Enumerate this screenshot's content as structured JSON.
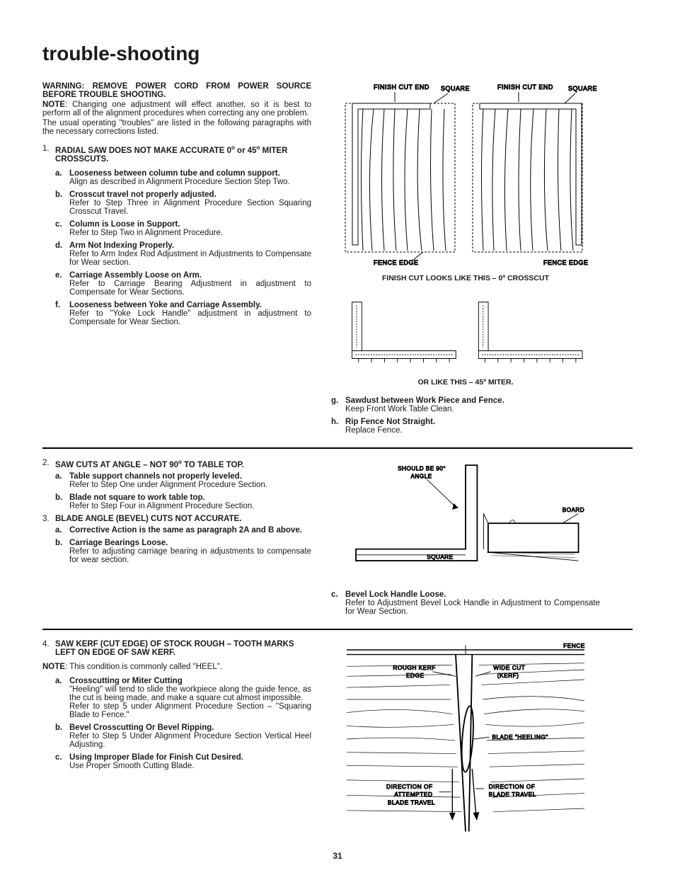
{
  "page_title": "trouble-shooting",
  "warning": "WARNING: REMOVE POWER CORD FROM POWER SOURCE BEFORE TROUBLE SHOOTING.",
  "note1_label": "NOTE",
  "note1_body": ": Changing one adjustment will effect another, so it is best to perform all of the alignment procedures when correcting any one problem.",
  "para2": "The usual operating \"troubles\" are listed in the following paragraphs with the necessary corrections listed.",
  "section1": {
    "num": "1.",
    "title_a": "RADIAL SAW DOES NOT MAKE ACCURATE 0",
    "title_b": " or 45",
    "title_c": " MITER CROSSCUTS.",
    "items": [
      {
        "l": "a.",
        "t": "Looseness between column tube and column support.",
        "b": "Align as described in Alignment Procedure Section Step Two."
      },
      {
        "l": "b.",
        "t": "Crosscut travel not properly adjusted.",
        "b": "Refer to Step Three in Alignment Procedure Section Squaring Crosscut Travel."
      },
      {
        "l": "c.",
        "t": "Column is Loose in Support.",
        "b": "Refer to Step Two in Alignment Procedure."
      },
      {
        "l": "d.",
        "t": "Arm Not Indexing Properly.",
        "b": "Refer to Arm Index Rod Adjustment in Adjustments to Compensate for Wear section."
      },
      {
        "l": "e.",
        "t": "Carriage Assembly Loose on Arm.",
        "b": "Refer to Carriage Bearing Adjustment in adjustment to Compensate for Wear Sections."
      },
      {
        "l": "f.",
        "t": "Looseness between Yoke and Carriage Assembly.",
        "b": "Refer to \"Yoke Lock Handle\" adjustment in adjustment to Compensate for Wear Section."
      }
    ],
    "items_right": [
      {
        "l": "g.",
        "t": "Sawdust between Work Piece and Fence.",
        "b": "Keep Front Work Table Clean."
      },
      {
        "l": "h.",
        "t": "Rip Fence Not Straight.",
        "b": "Replace Fence."
      }
    ]
  },
  "diagram1": {
    "labels": {
      "finish_cut_end": "FINISH CUT END",
      "square": "SQUARE",
      "fence_edge": "FENCE EDGE"
    },
    "caption": "FINISH CUT LOOKS LIKE THIS – 0º CROSSCUT"
  },
  "diagram2": {
    "caption": "OR LIKE THIS – 45º MITER."
  },
  "section2": {
    "num": "2.",
    "title_a": "SAW CUTS AT ANGLE – NOT 90",
    "title_b": " TO TABLE TOP.",
    "items": [
      {
        "l": "a.",
        "t": "Table support channels not properly leveled.",
        "b": "Refer to Step One under Alignment Procedure Section."
      },
      {
        "l": "b.",
        "t": "Blade not square to work table top.",
        "b": "Refer to Step Four in Alignment Procedure Section."
      }
    ]
  },
  "section3": {
    "num": "3.",
    "title": "BLADE ANGLE (BEVEL) CUTS NOT ACCURATE.",
    "items": [
      {
        "l": "a.",
        "t": "Corrective Action is the same as paragraph 2A and B above.",
        "b": ""
      },
      {
        "l": "b.",
        "t": "Carriage Bearings Loose.",
        "b": "Refer to adjusting carriage bearing in adjustments to compensate for wear section."
      }
    ],
    "items_right": [
      {
        "l": "c.",
        "t": "Bevel Lock Handle Loose.",
        "b": "Refer to Adjustment Bevel Lock Handle in Adjustment to Compensate for Wear Section."
      }
    ]
  },
  "diagram3": {
    "labels": {
      "should_be": "SHOULD BE 90°",
      "angle": "ANGLE",
      "board": "BOARD",
      "square": "SQUARE"
    }
  },
  "section4": {
    "num": "4.",
    "title": "SAW KERF (CUT EDGE) OF STOCK ROUGH – TOOTH MARKS LEFT ON EDGE OF SAW KERF.",
    "note_label": "NOTE",
    "note_body": ": This condition is commonly called \"HEEL\".",
    "items": [
      {
        "l": "a.",
        "t": "Crosscutting or Miter Cutting",
        "b": "\"Heeling\" will tend to slide the workpiece along the guide fence, as the cut is being made, and make a square cut almost impossible.",
        "b2": "Refer to step 5 under Alignment Procedure Section – \"Squaring Blade to Fence.\""
      },
      {
        "l": "b.",
        "t": "Bevel Crosscutting Or Bevel Ripping.",
        "b": "Refer to Step 5 Under Alignment Procedure Section Vertical Heel Adjusting."
      },
      {
        "l": "c.",
        "t": "Using Improper Blade for Finish Cut Desired.",
        "b": "Use Proper Smooth Cutting Blade."
      }
    ]
  },
  "diagram4": {
    "labels": {
      "fence": "FENCE",
      "rough_kerf": "ROUGH KERF",
      "edge": "EDGE",
      "wide_cut": "WIDE CUT",
      "kerf": "(KERF)",
      "blade_heeling": "BLADE \"HEELING\"",
      "dir_attempted": "DIRECTION OF",
      "attempted": "ATTEMPTED",
      "blade_travel": "BLADE TRAVEL",
      "dir_actual": "DIRECTION OF",
      "blade_travel2": "BLADE TRAVEL"
    }
  },
  "page_number": "31",
  "colors": {
    "text": "#1a1a1a",
    "bg": "#ffffff",
    "line": "#000000"
  }
}
